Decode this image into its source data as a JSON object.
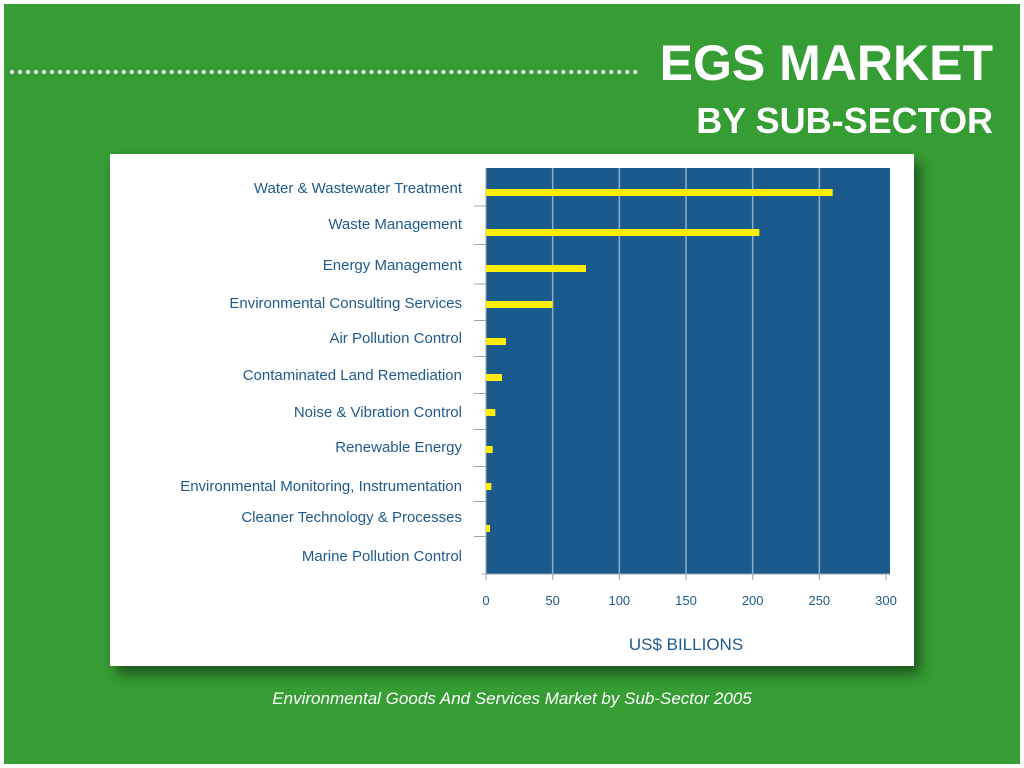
{
  "slide": {
    "title_line1": "EGS MARKET",
    "title_line2": "BY SUB-SECTOR",
    "caption": "Environmental Goods And Services Market by Sub-Sector 2005"
  },
  "colors": {
    "background": "#369c34",
    "plot_area": "#1b5a8d",
    "bar": "#ffee00",
    "label_text": "#1f5a8d"
  },
  "chart_data": {
    "type": "bar",
    "orientation": "horizontal",
    "categories": [
      "Water & Wastewater Treatment",
      "Waste Management",
      "Energy Management",
      "Environmental Consulting Services",
      "Air Pollution Control",
      "Contaminated Land Remediation",
      "Noise & Vibration Control",
      "Renewable Energy",
      "Environmental Monitoring, Instrumentation",
      "Cleaner Technology & Processes",
      "Marine Pollution Control"
    ],
    "values": [
      260,
      205,
      75,
      50,
      15,
      12,
      7,
      5,
      4,
      3,
      2
    ],
    "xlabel": "US$ BILLIONS",
    "ylabel": "",
    "xlim": [
      0,
      300
    ],
    "xticks": [
      "0",
      "50",
      "100",
      "150",
      "200",
      "250",
      "300"
    ],
    "grid": true
  }
}
